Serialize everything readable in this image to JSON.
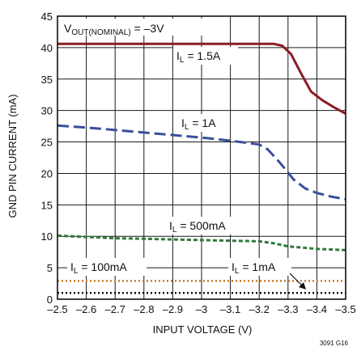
{
  "chart_data": {
    "type": "line",
    "figure_id": "3091 G16",
    "xlabel": "INPUT VOLTAGE (V)",
    "ylabel": "GND PIN CURRENT (mA)",
    "xlim": [
      -2.5,
      -3.5
    ],
    "ylim": [
      0,
      45
    ],
    "x_ticks": [
      "–2.5",
      "–2.6",
      "–2.7",
      "–2.8",
      "–2.9",
      "–3",
      "–3.1",
      "–3.2",
      "–3.3",
      "–3.4",
      "–3.5"
    ],
    "y_ticks": [
      "0",
      "5",
      "10",
      "15",
      "20",
      "25",
      "30",
      "35",
      "40",
      "45"
    ],
    "grid": true,
    "annotation_box": {
      "main": "V",
      "sub": "OUT(NOMINAL)",
      "tail": " = –3V"
    },
    "series": [
      {
        "label_main": "I",
        "label_sub": "L",
        "label_tail": " = 1.5A",
        "color": "#8b1c24",
        "dash": "solid",
        "x": [
          -2.5,
          -2.6,
          -2.7,
          -2.8,
          -2.9,
          -3.0,
          -3.1,
          -3.2,
          -3.25,
          -3.28,
          -3.31,
          -3.35,
          -3.38,
          -3.42,
          -3.46,
          -3.5
        ],
        "y": [
          40.6,
          40.6,
          40.6,
          40.6,
          40.6,
          40.6,
          40.6,
          40.6,
          40.6,
          40.3,
          39.0,
          35.5,
          33.0,
          31.6,
          30.5,
          29.5
        ]
      },
      {
        "label_main": "I",
        "label_sub": "L",
        "label_tail": " = 1A",
        "color": "#3a4e9c",
        "dash": "long",
        "x": [
          -2.5,
          -2.6,
          -2.7,
          -2.8,
          -2.9,
          -3.0,
          -3.1,
          -3.15,
          -3.2,
          -3.23,
          -3.27,
          -3.32,
          -3.36,
          -3.4,
          -3.45,
          -3.5
        ],
        "y": [
          27.6,
          27.3,
          26.9,
          26.5,
          26.1,
          25.7,
          25.2,
          24.9,
          24.6,
          23.8,
          21.8,
          19.0,
          17.6,
          16.9,
          16.3,
          15.9
        ]
      },
      {
        "label_main": "I",
        "label_sub": "L",
        "label_tail": " = 500mA",
        "color": "#2f7a3a",
        "dash": "short",
        "x": [
          -2.5,
          -2.6,
          -2.7,
          -2.8,
          -2.9,
          -3.0,
          -3.1,
          -3.2,
          -3.25,
          -3.3,
          -3.4,
          -3.5
        ],
        "y": [
          10.1,
          9.9,
          9.7,
          9.6,
          9.5,
          9.4,
          9.3,
          9.2,
          8.9,
          8.4,
          8.0,
          7.8
        ]
      },
      {
        "label_main": "I",
        "label_sub": "L",
        "label_tail": " = 100mA",
        "color": "#c87a2c",
        "dash": "dot",
        "x": [
          -2.5,
          -3.0,
          -3.5
        ],
        "y": [
          2.9,
          2.9,
          2.9
        ]
      },
      {
        "label_main": "I",
        "label_sub": "L",
        "label_tail": " = 1mA",
        "color": "#111111",
        "dash": "dot",
        "x": [
          -2.5,
          -3.0,
          -3.5
        ],
        "y": [
          1.0,
          1.0,
          1.0
        ]
      }
    ]
  }
}
